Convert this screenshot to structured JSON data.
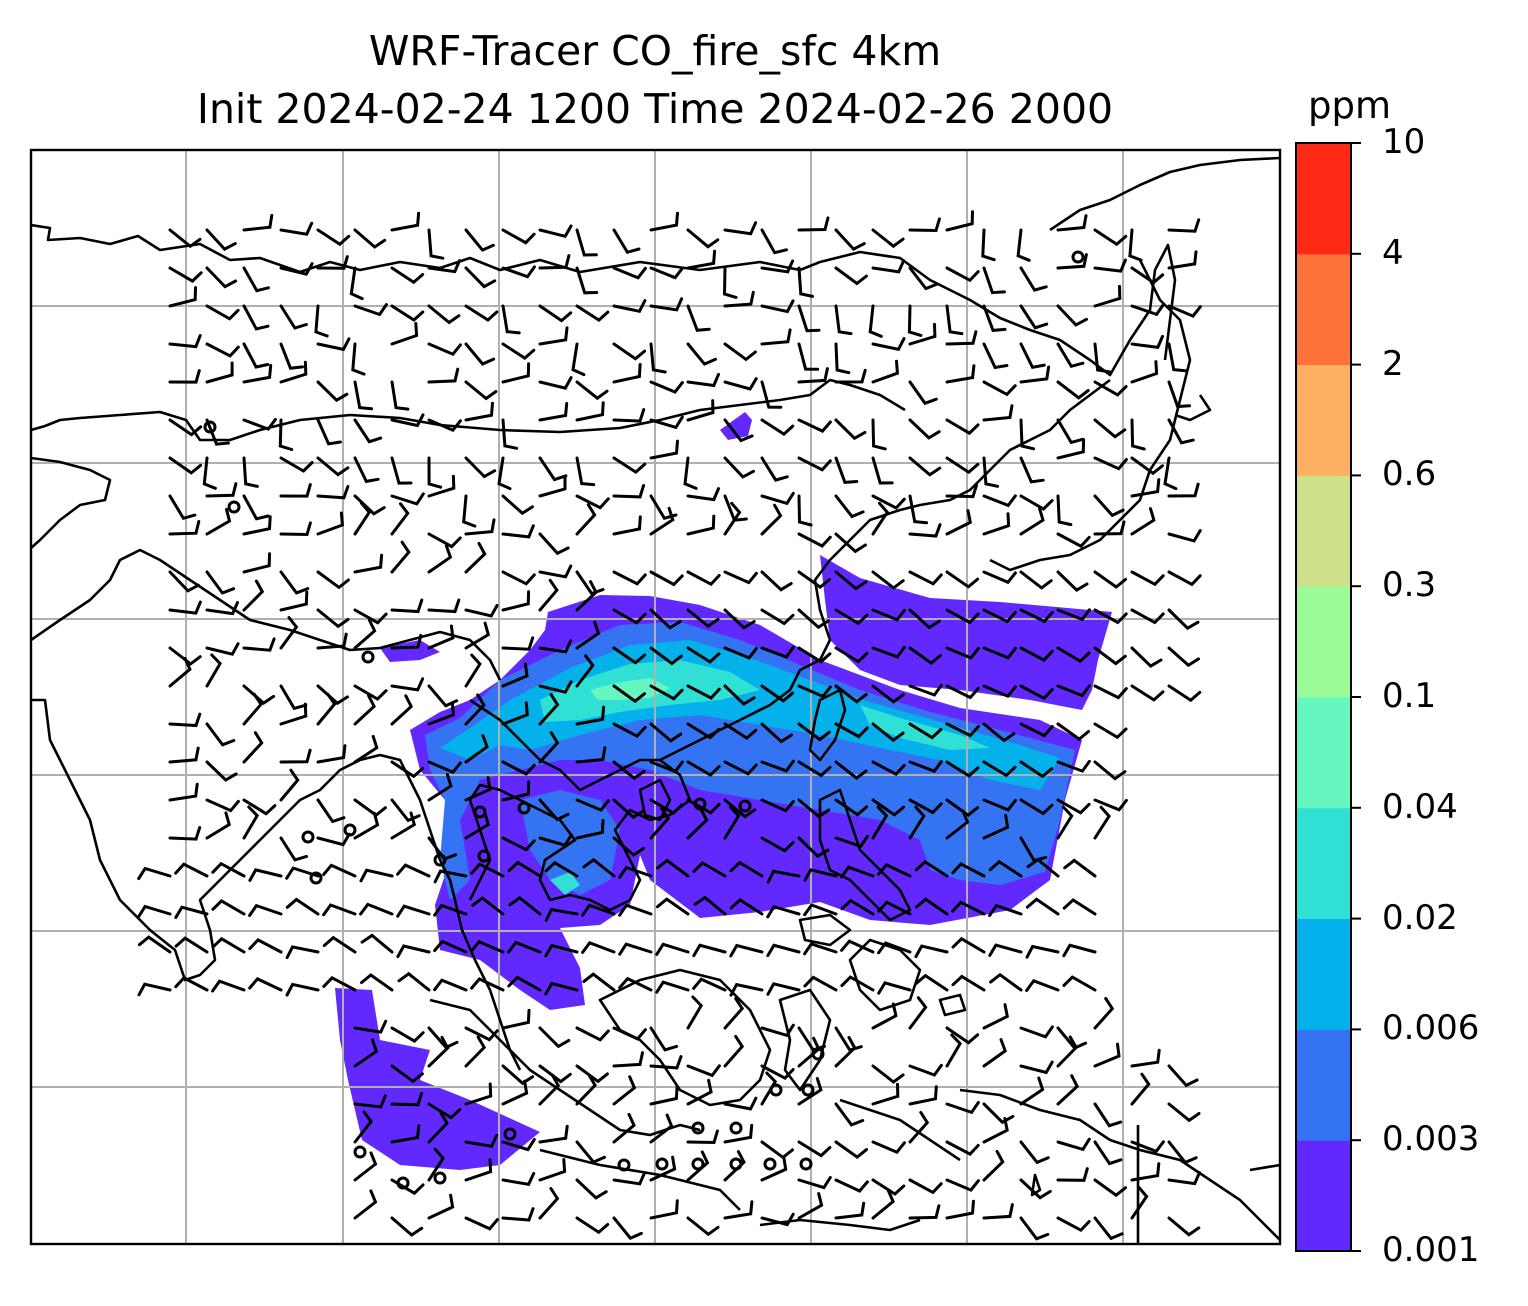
{
  "title_line1": "WRF-Tracer CO_fire_sfc 4km",
  "title_line2": "Init 2024-02-24 1200 Time 2024-02-26 2000",
  "colorbar": {
    "unit": "ppm",
    "levels": [
      "0.001",
      "0.003",
      "0.006",
      "0.02",
      "0.04",
      "0.1",
      "0.3",
      "0.6",
      "2",
      "4",
      "10"
    ],
    "colors": [
      "#6229ff",
      "#3474f3",
      "#04b1ea",
      "#30e0d4",
      "#66f7c0",
      "#9afb99",
      "#cfe08a",
      "#fdb061",
      "#ff7239",
      "#ff2a16"
    ]
  },
  "map_style": {
    "coastline_color": "#000000",
    "gridline_color": "#b0b0b0",
    "barb_color": "#000000"
  }
}
